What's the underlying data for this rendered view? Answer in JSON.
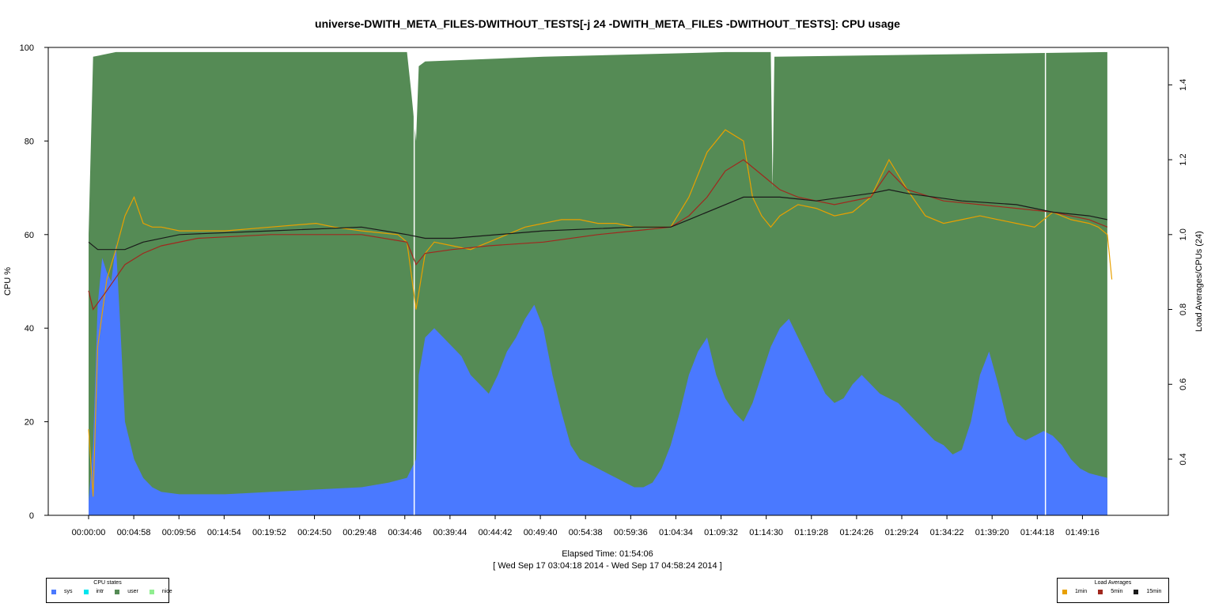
{
  "chart_data": {
    "type": "area",
    "title": "universe-DWITH_META_FILES-DWITHOUT_TESTS[-j 24 -DWITH_META_FILES -DWITHOUT_TESTS]: CPU usage",
    "xlabel": "Elapsed Time: 01:54:06",
    "xlabel_sub": "[ Wed Sep 17 03:04:18 2014 - Wed Sep 17 04:58:24 2014 ]",
    "ylabel_left": "CPU %",
    "ylabel_right": "Load Averages/CPUs (24)",
    "ylim_left": [
      0,
      100
    ],
    "ylim_right": [
      0.25,
      1.5
    ],
    "xlim_minutes": [
      0,
      114.1
    ],
    "x_ticks": [
      "00:00:00",
      "00:04:58",
      "00:09:56",
      "00:14:54",
      "00:19:52",
      "00:24:50",
      "00:29:48",
      "00:34:46",
      "00:39:44",
      "00:44:42",
      "00:49:40",
      "00:54:38",
      "00:59:36",
      "01:04:34",
      "01:09:32",
      "01:14:30",
      "01:19:28",
      "01:24:26",
      "01:29:24",
      "01:34:22",
      "01:39:20",
      "01:44:18",
      "01:49:16"
    ],
    "y_ticks_left": [
      0,
      20,
      40,
      60,
      80,
      100
    ],
    "y_ticks_right": [
      0.4,
      0.6,
      0.8,
      1.0,
      1.2,
      1.4
    ],
    "grid": false,
    "cpu_series": [
      {
        "name": "sys",
        "color": "#4a79ff",
        "points": [
          [
            0,
            3
          ],
          [
            0.5,
            15
          ],
          [
            1,
            45
          ],
          [
            1.5,
            55
          ],
          [
            2,
            52
          ],
          [
            2.5,
            50
          ],
          [
            3,
            58
          ],
          [
            3.5,
            40
          ],
          [
            4,
            20
          ],
          [
            5,
            12
          ],
          [
            6,
            8
          ],
          [
            7,
            6
          ],
          [
            8,
            5
          ],
          [
            10,
            4.5
          ],
          [
            15,
            4.5
          ],
          [
            20,
            5
          ],
          [
            25,
            5.5
          ],
          [
            30,
            6
          ],
          [
            33,
            7
          ],
          [
            35,
            8
          ],
          [
            36,
            12
          ],
          [
            36.3,
            30
          ],
          [
            37,
            38
          ],
          [
            38,
            40
          ],
          [
            39,
            38
          ],
          [
            40,
            36
          ],
          [
            41,
            34
          ],
          [
            42,
            30
          ],
          [
            43,
            28
          ],
          [
            44,
            26
          ],
          [
            45,
            30
          ],
          [
            46,
            35
          ],
          [
            47,
            38
          ],
          [
            48,
            42
          ],
          [
            49,
            45
          ],
          [
            50,
            40
          ],
          [
            51,
            30
          ],
          [
            52,
            22
          ],
          [
            53,
            15
          ],
          [
            54,
            12
          ],
          [
            55,
            11
          ],
          [
            56,
            10
          ],
          [
            57,
            9
          ],
          [
            58,
            8
          ],
          [
            59,
            7
          ],
          [
            60,
            6
          ],
          [
            61,
            6
          ],
          [
            62,
            7
          ],
          [
            63,
            10
          ],
          [
            64,
            15
          ],
          [
            65,
            22
          ],
          [
            66,
            30
          ],
          [
            67,
            35
          ],
          [
            68,
            38
          ],
          [
            69,
            30
          ],
          [
            70,
            25
          ],
          [
            71,
            22
          ],
          [
            72,
            20
          ],
          [
            73,
            24
          ],
          [
            74,
            30
          ],
          [
            75,
            36
          ],
          [
            76,
            40
          ],
          [
            77,
            42
          ],
          [
            78,
            38
          ],
          [
            79,
            34
          ],
          [
            80,
            30
          ],
          [
            81,
            26
          ],
          [
            82,
            24
          ],
          [
            83,
            25
          ],
          [
            84,
            28
          ],
          [
            85,
            30
          ],
          [
            86,
            28
          ],
          [
            87,
            26
          ],
          [
            88,
            25
          ],
          [
            89,
            24
          ],
          [
            90,
            22
          ],
          [
            91,
            20
          ],
          [
            92,
            18
          ],
          [
            93,
            16
          ],
          [
            94,
            15
          ],
          [
            95,
            13
          ],
          [
            96,
            14
          ],
          [
            97,
            20
          ],
          [
            98,
            30
          ],
          [
            99,
            35
          ],
          [
            100,
            28
          ],
          [
            101,
            20
          ],
          [
            102,
            17
          ],
          [
            103,
            16
          ],
          [
            104,
            17
          ],
          [
            105,
            18
          ],
          [
            106,
            17
          ],
          [
            107,
            15
          ],
          [
            108,
            12
          ],
          [
            109,
            10
          ],
          [
            110,
            9
          ],
          [
            111,
            8.5
          ],
          [
            112,
            8
          ]
        ]
      },
      {
        "name": "intr",
        "color": "#00e5ee",
        "points": []
      },
      {
        "name": "user",
        "color": "#558b55",
        "points": [
          [
            0,
            60
          ],
          [
            0.5,
            98
          ],
          [
            3,
            99
          ],
          [
            35,
            99
          ],
          [
            35.5,
            90
          ],
          [
            36,
            80
          ],
          [
            36.3,
            96
          ],
          [
            37,
            97
          ],
          [
            50,
            98
          ],
          [
            70,
            99
          ],
          [
            75,
            99
          ],
          [
            75.2,
            70
          ],
          [
            75.4,
            98
          ],
          [
            112,
            99
          ]
        ]
      },
      {
        "name": "nice",
        "color": "#90ee90",
        "points": []
      }
    ],
    "load_series": [
      {
        "name": "1min",
        "color": "#e8a000",
        "points": [
          [
            0,
            0.48
          ],
          [
            0.5,
            0.3
          ],
          [
            1,
            0.7
          ],
          [
            2,
            0.88
          ],
          [
            3,
            0.96
          ],
          [
            4,
            1.05
          ],
          [
            5,
            1.1
          ],
          [
            6,
            1.03
          ],
          [
            7,
            1.02
          ],
          [
            8,
            1.02
          ],
          [
            10,
            1.01
          ],
          [
            15,
            1.01
          ],
          [
            20,
            1.02
          ],
          [
            25,
            1.03
          ],
          [
            27,
            1.02
          ],
          [
            30,
            1.01
          ],
          [
            34,
            1.0
          ],
          [
            35,
            0.98
          ],
          [
            36,
            0.8
          ],
          [
            37,
            0.95
          ],
          [
            38,
            0.98
          ],
          [
            40,
            0.97
          ],
          [
            42,
            0.96
          ],
          [
            44,
            0.98
          ],
          [
            46,
            1.0
          ],
          [
            48,
            1.02
          ],
          [
            50,
            1.03
          ],
          [
            52,
            1.04
          ],
          [
            54,
            1.04
          ],
          [
            56,
            1.03
          ],
          [
            58,
            1.03
          ],
          [
            60,
            1.02
          ],
          [
            62,
            1.02
          ],
          [
            64,
            1.02
          ],
          [
            66,
            1.1
          ],
          [
            68,
            1.22
          ],
          [
            70,
            1.28
          ],
          [
            72,
            1.25
          ],
          [
            73,
            1.1
          ],
          [
            74,
            1.05
          ],
          [
            75,
            1.02
          ],
          [
            76,
            1.05
          ],
          [
            78,
            1.08
          ],
          [
            80,
            1.07
          ],
          [
            82,
            1.05
          ],
          [
            84,
            1.06
          ],
          [
            86,
            1.1
          ],
          [
            88,
            1.2
          ],
          [
            90,
            1.12
          ],
          [
            92,
            1.05
          ],
          [
            94,
            1.03
          ],
          [
            96,
            1.04
          ],
          [
            98,
            1.05
          ],
          [
            100,
            1.04
          ],
          [
            102,
            1.03
          ],
          [
            104,
            1.02
          ],
          [
            106,
            1.06
          ],
          [
            108,
            1.04
          ],
          [
            110,
            1.03
          ],
          [
            111,
            1.02
          ],
          [
            112,
            1.0
          ],
          [
            112.5,
            0.88
          ]
        ]
      },
      {
        "name": "5min",
        "color": "#a0281e",
        "points": [
          [
            0,
            0.85
          ],
          [
            0.5,
            0.8
          ],
          [
            2,
            0.85
          ],
          [
            4,
            0.92
          ],
          [
            6,
            0.95
          ],
          [
            8,
            0.97
          ],
          [
            12,
            0.99
          ],
          [
            20,
            1.0
          ],
          [
            30,
            1.0
          ],
          [
            35,
            0.98
          ],
          [
            36,
            0.92
          ],
          [
            37,
            0.95
          ],
          [
            40,
            0.96
          ],
          [
            44,
            0.97
          ],
          [
            50,
            0.98
          ],
          [
            56,
            1.0
          ],
          [
            60,
            1.01
          ],
          [
            64,
            1.02
          ],
          [
            66,
            1.05
          ],
          [
            68,
            1.1
          ],
          [
            70,
            1.17
          ],
          [
            72,
            1.2
          ],
          [
            74,
            1.16
          ],
          [
            76,
            1.12
          ],
          [
            78,
            1.1
          ],
          [
            82,
            1.08
          ],
          [
            86,
            1.1
          ],
          [
            88,
            1.17
          ],
          [
            90,
            1.12
          ],
          [
            94,
            1.09
          ],
          [
            98,
            1.08
          ],
          [
            102,
            1.07
          ],
          [
            106,
            1.06
          ],
          [
            110,
            1.04
          ],
          [
            112,
            1.02
          ]
        ]
      },
      {
        "name": "15min",
        "color": "#1a1a1a",
        "points": [
          [
            0,
            0.98
          ],
          [
            1,
            0.96
          ],
          [
            4,
            0.96
          ],
          [
            6,
            0.98
          ],
          [
            10,
            1.0
          ],
          [
            20,
            1.01
          ],
          [
            30,
            1.02
          ],
          [
            35,
            1.0
          ],
          [
            37,
            0.99
          ],
          [
            40,
            0.99
          ],
          [
            50,
            1.01
          ],
          [
            60,
            1.02
          ],
          [
            64,
            1.02
          ],
          [
            66,
            1.04
          ],
          [
            70,
            1.08
          ],
          [
            72,
            1.1
          ],
          [
            76,
            1.1
          ],
          [
            80,
            1.09
          ],
          [
            86,
            1.11
          ],
          [
            88,
            1.12
          ],
          [
            90,
            1.11
          ],
          [
            96,
            1.09
          ],
          [
            102,
            1.08
          ],
          [
            106,
            1.06
          ],
          [
            110,
            1.05
          ],
          [
            112,
            1.04
          ]
        ]
      }
    ]
  },
  "legends": {
    "cpu": {
      "title": "CPU states",
      "items": [
        "sys",
        "intr",
        "user",
        "nice"
      ]
    },
    "load": {
      "title": "Load Averages",
      "items": [
        "1min",
        "5min",
        "15min"
      ]
    }
  }
}
